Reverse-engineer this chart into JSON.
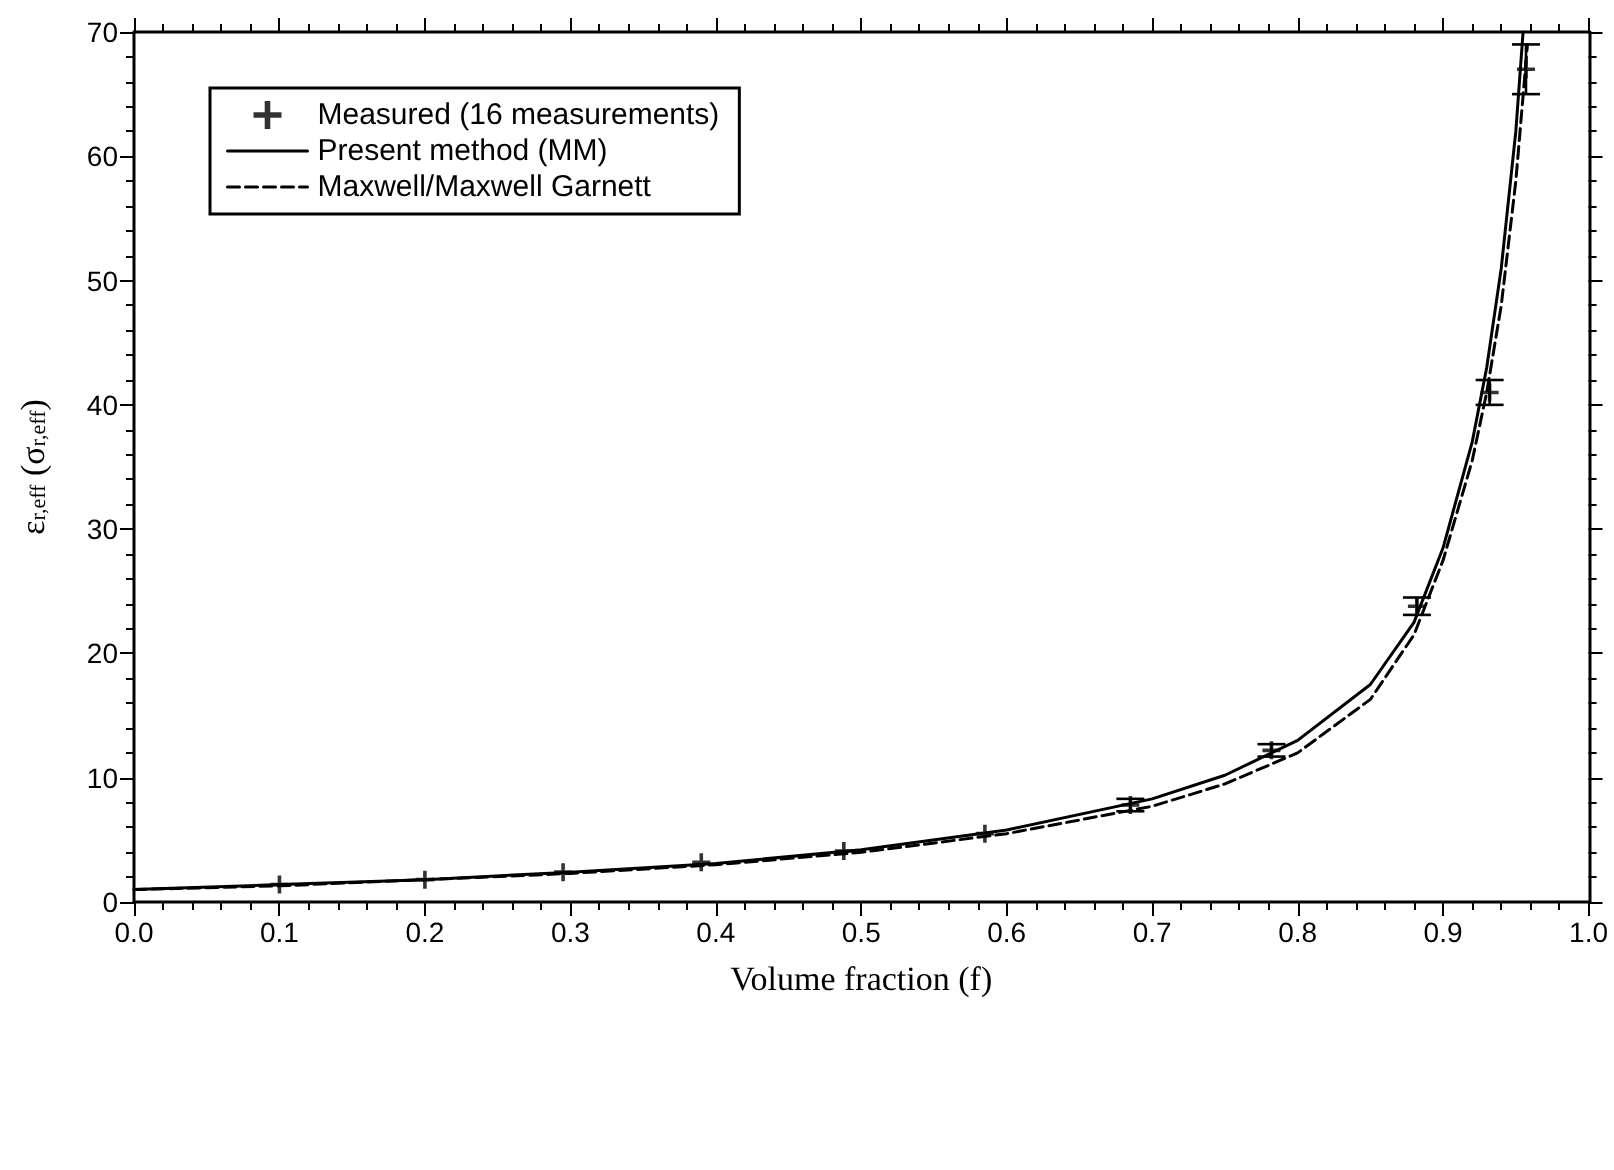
{
  "chart_data": {
    "type": "line",
    "xlabel": "Volume fraction (f)",
    "ylabel": "ε$_{r,eff}$ (σ$_{r,eff}$)",
    "xlim": [
      0,
      1
    ],
    "ylim": [
      0,
      70
    ],
    "xticks": [
      {
        "value": 0,
        "label": "0.0"
      },
      {
        "value": 0.1,
        "label": "0.1"
      },
      {
        "value": 0.2,
        "label": "0.2"
      },
      {
        "value": 0.3,
        "label": "0.3"
      },
      {
        "value": 0.4,
        "label": "0.4"
      },
      {
        "value": 0.5,
        "label": "0.5"
      },
      {
        "value": 0.6,
        "label": "0.6"
      },
      {
        "value": 0.7,
        "label": "0.7"
      },
      {
        "value": 0.8,
        "label": "0.8"
      },
      {
        "value": 0.9,
        "label": "0.9"
      },
      {
        "value": 1,
        "label": "1.0"
      }
    ],
    "yticks": [
      0,
      10,
      20,
      30,
      40,
      50,
      60,
      70
    ],
    "grid": false,
    "legend": "top left",
    "series": [
      {
        "name": "Measured (16 measurements)",
        "type": "scatter",
        "color": "#000000",
        "marker": "cross",
        "x": [
          0.1,
          0.2,
          0.295,
          0.39,
          0.488,
          0.585,
          0.685,
          0.782,
          0.882,
          0.932,
          0.957
        ],
        "values": [
          1.4,
          1.8,
          2.4,
          3.2,
          4.1,
          5.5,
          7.8,
          12.2,
          23.8,
          41,
          67
        ],
        "errors": [
          null,
          null,
          null,
          null,
          null,
          null,
          0.5,
          0.5,
          0.7,
          1,
          2
        ]
      },
      {
        "name": "Present method (MM)",
        "type": "line",
        "color": "#000000",
        "line_style": "solid",
        "x": [
          0,
          0.1,
          0.2,
          0.3,
          0.4,
          0.5,
          0.6,
          0.7,
          0.75,
          0.8,
          0.85,
          0.88,
          0.9,
          0.92,
          0.93,
          0.94,
          0.95,
          0.955
        ],
        "values": [
          1,
          1.4,
          1.8,
          2.4,
          3.1,
          4.2,
          5.8,
          8.3,
          10.2,
          13,
          17.5,
          22.5,
          28.5,
          37,
          43,
          51,
          62,
          70
        ]
      },
      {
        "name": "Maxwell/Maxwell Garnett",
        "type": "line",
        "color": "#000000",
        "line_style": "dashed",
        "x": [
          0,
          0.1,
          0.2,
          0.3,
          0.4,
          0.5,
          0.6,
          0.7,
          0.75,
          0.8,
          0.85,
          0.88,
          0.9,
          0.92,
          0.93,
          0.94,
          0.95,
          0.958
        ],
        "values": [
          1,
          1.3,
          1.8,
          2.3,
          3,
          4,
          5.5,
          7.7,
          9.5,
          12,
          16.3,
          21.5,
          27.5,
          35.5,
          41,
          48,
          58,
          69
        ]
      }
    ]
  }
}
